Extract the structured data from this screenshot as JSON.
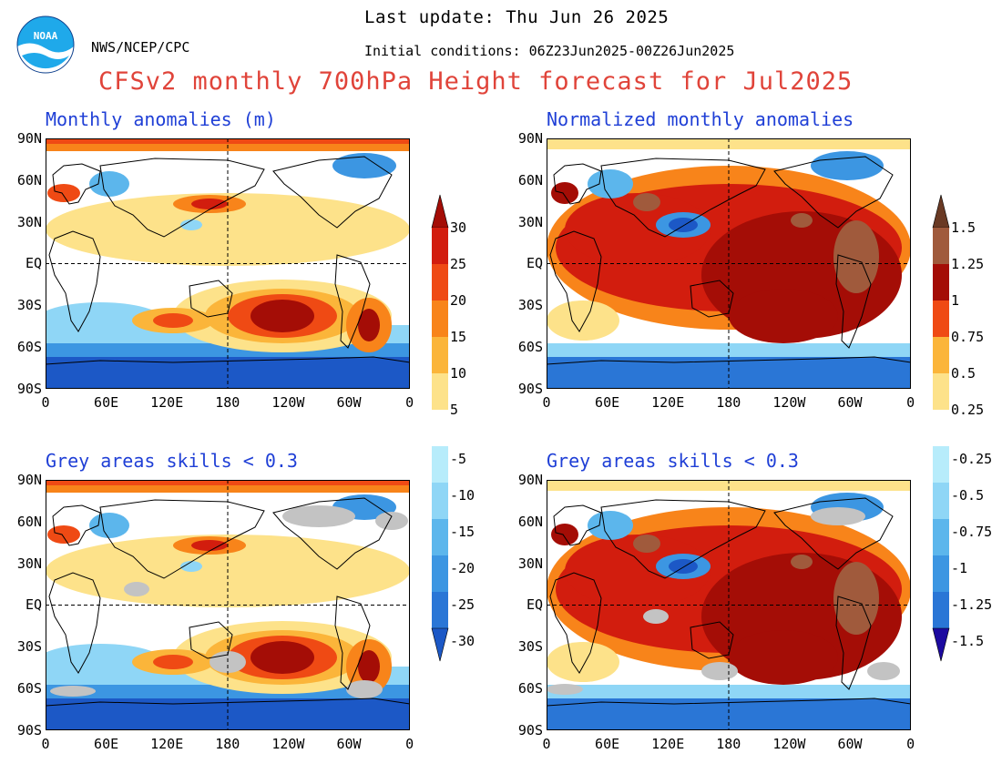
{
  "header": {
    "agency": "NWS/NCEP/CPC",
    "logo_text": "NOAA",
    "last_update": "Last update: Thu Jun 26 2025",
    "initial_conditions": "Initial conditions: 06Z23Jun2025-00Z26Jun2025",
    "title": "CFSv2 monthly 700hPa Height forecast for Jul2025"
  },
  "panels": [
    {
      "title": "Monthly anomalies (m)"
    },
    {
      "title": "Normalized monthly anomalies"
    },
    {
      "title": "Grey areas skills < 0.3"
    },
    {
      "title": "Grey areas skills < 0.3"
    }
  ],
  "axes": {
    "lat_ticks": [
      "90N",
      "60N",
      "30N",
      "EQ",
      "30S",
      "60S",
      "90S"
    ],
    "lon_ticks": [
      "0",
      "60E",
      "120E",
      "180",
      "120W",
      "60W",
      "0"
    ]
  },
  "colorbar_left": {
    "warm_labels": [
      "30",
      "25",
      "20",
      "15",
      "10",
      "5"
    ],
    "cold_labels": [
      "-5",
      "-10",
      "-15",
      "-20",
      "-25",
      "-30"
    ]
  },
  "colorbar_right": {
    "warm_labels": [
      "1.5",
      "1.25",
      "1",
      "0.75",
      "0.5",
      "0.25"
    ],
    "cold_labels": [
      "-0.25",
      "-0.5",
      "-0.75",
      "-1",
      "-1.25",
      "-1.5"
    ]
  },
  "colors": {
    "warm": [
      "#fde28a",
      "#fbb53a",
      "#f8841a",
      "#ef4a14",
      "#d21d0e",
      "#a40d06"
    ],
    "cold": [
      "#b7ecfb",
      "#8fd6f6",
      "#5cb6ec",
      "#3c96e2",
      "#2a76d6",
      "#1c58c6"
    ],
    "norm_top": [
      "#a05a3c",
      "#6a3a24"
    ],
    "norm_bottom": [
      "#6b4cd0",
      "#1c0aa0"
    ],
    "grey": "#c3c3c3"
  }
}
